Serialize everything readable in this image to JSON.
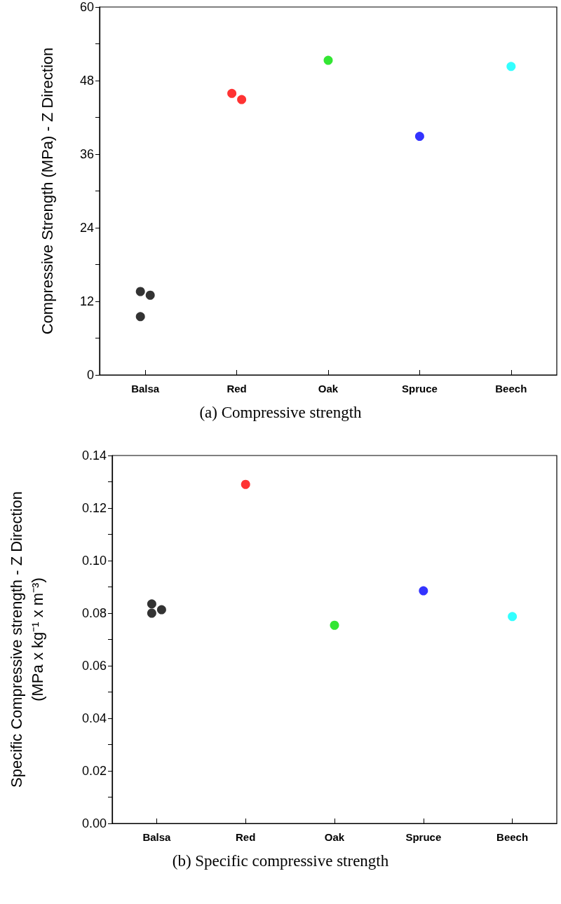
{
  "chart_data": [
    {
      "type": "scatter",
      "categories": [
        "Balsa",
        "Red",
        "Oak",
        "Spruce",
        "Beech"
      ],
      "ylabel": "Compressive Strength (MPa) - Z Direction",
      "ylim": [
        0,
        60
      ],
      "yticks": [
        0,
        {
          "value": 6,
          "label": null
        },
        12,
        {
          "value": 18,
          "label": null
        },
        24,
        {
          "value": 30,
          "label": null
        },
        36,
        {
          "value": 42,
          "label": null
        },
        48,
        {
          "value": 54,
          "label": null
        },
        60
      ],
      "marker": "circle",
      "grid": false,
      "annotations": [
        "(a) Compressive strength"
      ],
      "series": [
        {
          "color": "#000000",
          "x": [
            "Balsa",
            "Balsa",
            "Balsa"
          ],
          "values": [
            13.6,
            13.0,
            9.5
          ]
        },
        {
          "color": "#ff0000",
          "x": [
            "Red",
            "Red"
          ],
          "values": [
            45.9,
            44.9
          ]
        },
        {
          "color": "#00e000",
          "x": [
            "Oak"
          ],
          "values": [
            51.3
          ]
        },
        {
          "color": "#0000ff",
          "x": [
            "Spruce"
          ],
          "values": [
            38.9
          ]
        },
        {
          "color": "#00ffff",
          "x": [
            "Beech"
          ],
          "values": [
            50.3
          ]
        }
      ]
    },
    {
      "type": "scatter",
      "categories": [
        "Balsa",
        "Red",
        "Oak",
        "Spruce",
        "Beech"
      ],
      "ylabel": "Specific Compressive strength - Z Direction\n(MPa x kg⁻¹ x m⁻³)",
      "ylim": [
        0,
        0.14
      ],
      "yticks": [
        {
          "value": 0,
          "label": "0.00"
        },
        {
          "value": 0.01,
          "label": null
        },
        0.02,
        {
          "value": 0.03,
          "label": null
        },
        0.04,
        {
          "value": 0.05,
          "label": null
        },
        0.06,
        {
          "value": 0.07,
          "label": null
        },
        0.08,
        {
          "value": 0.09,
          "label": null
        },
        {
          "value": 0.1,
          "label": "0.10"
        },
        {
          "value": 0.11,
          "label": null
        },
        0.12,
        {
          "value": 0.13,
          "label": null
        },
        0.14
      ],
      "marker": "circle",
      "grid": false,
      "annotations": [
        "(b) Specific compressive strength"
      ],
      "series": [
        {
          "color": "#000000",
          "x": [
            "Balsa",
            "Balsa",
            "Balsa"
          ],
          "values": [
            0.0835,
            0.0813,
            0.08
          ]
        },
        {
          "color": "#ff0000",
          "x": [
            "Red"
          ],
          "values": [
            0.129
          ]
        },
        {
          "color": "#00e000",
          "x": [
            "Oak"
          ],
          "values": [
            0.0754
          ]
        },
        {
          "color": "#0000ff",
          "x": [
            "Spruce"
          ],
          "values": [
            0.0885
          ]
        },
        {
          "color": "#00ffff",
          "x": [
            "Beech"
          ],
          "values": [
            0.0787
          ]
        }
      ]
    }
  ]
}
